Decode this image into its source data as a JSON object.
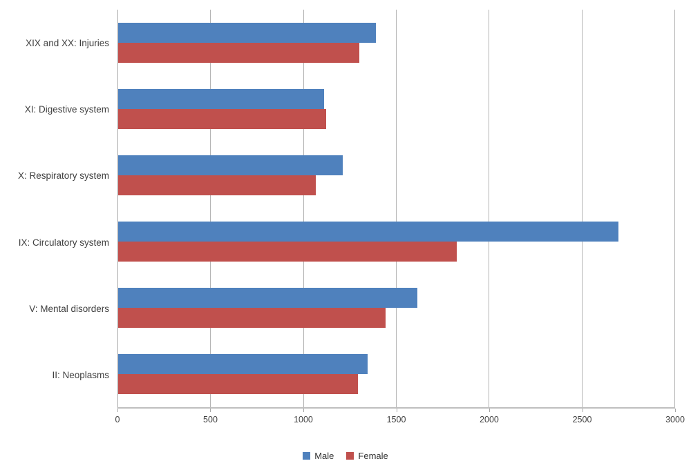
{
  "chart_data": {
    "type": "bar",
    "orientation": "horizontal",
    "title": "",
    "xlabel": "",
    "ylabel": "",
    "xlim": [
      0,
      3000
    ],
    "x_ticks": [
      0,
      500,
      1000,
      1500,
      2000,
      2500,
      3000
    ],
    "grid": "vertical",
    "legend_position": "bottom",
    "categories": [
      "XIX and XX: Injuries",
      "XI: Digestive system",
      "X: Respiratory system",
      "IX: Circulatory system",
      "V: Mental disorders",
      "II: Neoplasms"
    ],
    "series": [
      {
        "name": "Male",
        "color": "#4F81BD",
        "values": [
          1390,
          1110,
          1210,
          2695,
          1610,
          1345
        ]
      },
      {
        "name": "Female",
        "color": "#C0504D",
        "values": [
          1300,
          1120,
          1065,
          1825,
          1440,
          1290
        ]
      }
    ],
    "colors": {
      "gridline": "#b3b3b3",
      "axis": "#a6a6a6",
      "text": "#404040"
    }
  }
}
